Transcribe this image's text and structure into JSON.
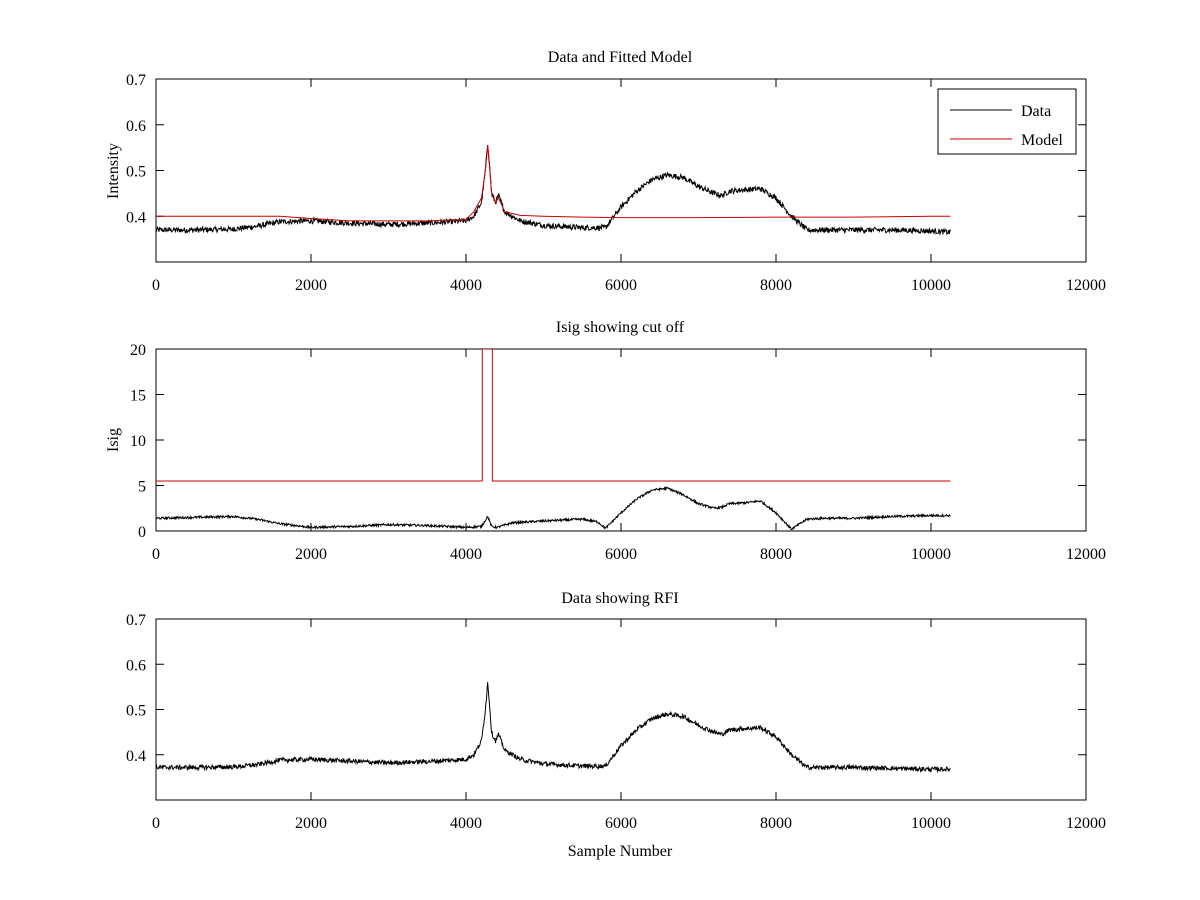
{
  "figure": {
    "background": "#ffffff"
  },
  "chart_data": [
    {
      "type": "line",
      "title": "Data and Fitted Model",
      "xlabel": "",
      "ylabel": "Intensity",
      "xlim": [
        0,
        12000
      ],
      "ylim": [
        0.3,
        0.7
      ],
      "xticks": [
        0,
        2000,
        4000,
        6000,
        8000,
        10000,
        12000
      ],
      "xtick_labels": [
        "0",
        "2000",
        "4000",
        "6000",
        "8000",
        "10000",
        "12000"
      ],
      "yticks": [
        0.4,
        0.5,
        0.6,
        0.7
      ],
      "ytick_labels": [
        "0.4",
        "0.5",
        "0.6",
        "0.7"
      ],
      "legend": {
        "position": "top-right",
        "entries": [
          "Data",
          "Model"
        ]
      },
      "series": [
        {
          "name": "Data",
          "color": "#000000",
          "noise": 0.006,
          "x": [
            0,
            500,
            1000,
            1300,
            1600,
            2000,
            2500,
            3000,
            3500,
            4000,
            4100,
            4200,
            4250,
            4280,
            4300,
            4330,
            4380,
            4420,
            4500,
            4700,
            5000,
            5500,
            5800,
            6000,
            6200,
            6400,
            6600,
            6800,
            7000,
            7200,
            7300,
            7400,
            7600,
            7800,
            8000,
            8200,
            8400,
            8600,
            9000,
            9500,
            10000,
            10250
          ],
          "y": [
            0.37,
            0.37,
            0.372,
            0.378,
            0.388,
            0.39,
            0.385,
            0.382,
            0.385,
            0.39,
            0.4,
            0.43,
            0.5,
            0.56,
            0.52,
            0.45,
            0.43,
            0.445,
            0.41,
            0.39,
            0.38,
            0.375,
            0.375,
            0.42,
            0.455,
            0.48,
            0.49,
            0.485,
            0.465,
            0.45,
            0.445,
            0.455,
            0.458,
            0.46,
            0.44,
            0.4,
            0.37,
            0.37,
            0.37,
            0.37,
            0.368,
            0.365
          ]
        },
        {
          "name": "Model",
          "color": "#cc0000",
          "noise": 0,
          "x": [
            0,
            1000,
            1600,
            2000,
            2500,
            3000,
            3500,
            4000,
            4100,
            4200,
            4250,
            4280,
            4300,
            4330,
            4380,
            4420,
            4500,
            4700,
            5000,
            5500,
            6000,
            7000,
            8000,
            9000,
            10000,
            10250
          ],
          "y": [
            0.4,
            0.4,
            0.4,
            0.395,
            0.39,
            0.39,
            0.39,
            0.393,
            0.41,
            0.44,
            0.5,
            0.555,
            0.52,
            0.45,
            0.43,
            0.44,
            0.41,
            0.402,
            0.4,
            0.398,
            0.397,
            0.397,
            0.398,
            0.398,
            0.4,
            0.4
          ]
        }
      ]
    },
    {
      "type": "line",
      "title": "Isig showing cut off",
      "xlabel": "",
      "ylabel": "Isig",
      "xlim": [
        0,
        12000
      ],
      "ylim": [
        0,
        20
      ],
      "xticks": [
        0,
        2000,
        4000,
        6000,
        8000,
        10000,
        12000
      ],
      "xtick_labels": [
        "0",
        "2000",
        "4000",
        "6000",
        "8000",
        "10000",
        "12000"
      ],
      "yticks": [
        0,
        5,
        10,
        15,
        20
      ],
      "ytick_labels": [
        "0",
        "5",
        "10",
        "15",
        "20"
      ],
      "series": [
        {
          "color": "#000000",
          "noise": 0.12,
          "x": [
            0,
            500,
            1000,
            1300,
            1600,
            2000,
            2500,
            3000,
            3500,
            4000,
            4200,
            4280,
            4330,
            4400,
            4600,
            5000,
            5500,
            5700,
            5800,
            6000,
            6200,
            6400,
            6600,
            6800,
            7000,
            7200,
            7300,
            7400,
            7600,
            7800,
            8000,
            8200,
            8400,
            8600,
            9000,
            9500,
            10000,
            10250
          ],
          "y": [
            1.4,
            1.5,
            1.6,
            1.3,
            0.8,
            0.4,
            0.5,
            0.7,
            0.6,
            0.4,
            0.5,
            1.6,
            0.5,
            0.4,
            0.9,
            1.1,
            1.3,
            1.0,
            0.3,
            2.0,
            3.5,
            4.5,
            4.7,
            4.0,
            3.0,
            2.5,
            2.6,
            3.0,
            3.1,
            3.3,
            2.0,
            0.2,
            1.3,
            1.4,
            1.4,
            1.6,
            1.7,
            1.7
          ]
        },
        {
          "color": "#cc0000",
          "noise": 0,
          "x": [
            0,
            4210,
            4210,
            4340,
            4340,
            10250
          ],
          "y": [
            5.5,
            5.5,
            20,
            20,
            5.5,
            5.5
          ]
        }
      ]
    },
    {
      "type": "line",
      "title": "Data showing RFI",
      "xlabel": "Sample Number",
      "ylabel": "",
      "xlim": [
        0,
        12000
      ],
      "ylim": [
        0.3,
        0.7
      ],
      "xticks": [
        0,
        2000,
        4000,
        6000,
        8000,
        10000,
        12000
      ],
      "xtick_labels": [
        "0",
        "2000",
        "4000",
        "6000",
        "8000",
        "10000",
        "12000"
      ],
      "yticks": [
        0.4,
        0.5,
        0.6,
        0.7
      ],
      "ytick_labels": [
        "0.4",
        "0.5",
        "0.6",
        "0.7"
      ],
      "series": [
        {
          "color": "#000000",
          "noise": 0.005,
          "x": [
            0,
            500,
            1000,
            1300,
            1600,
            2000,
            2500,
            3000,
            3500,
            4000,
            4100,
            4200,
            4250,
            4280,
            4300,
            4330,
            4380,
            4420,
            4500,
            4700,
            5000,
            5500,
            5800,
            6000,
            6200,
            6400,
            6600,
            6800,
            7000,
            7200,
            7300,
            7400,
            7600,
            7800,
            8000,
            8200,
            8400,
            8600,
            9000,
            9500,
            10000,
            10250
          ],
          "y": [
            0.372,
            0.372,
            0.373,
            0.378,
            0.388,
            0.39,
            0.386,
            0.382,
            0.385,
            0.39,
            0.4,
            0.43,
            0.5,
            0.56,
            0.52,
            0.45,
            0.43,
            0.445,
            0.41,
            0.39,
            0.38,
            0.375,
            0.375,
            0.42,
            0.455,
            0.48,
            0.49,
            0.485,
            0.465,
            0.45,
            0.445,
            0.455,
            0.458,
            0.46,
            0.44,
            0.4,
            0.372,
            0.372,
            0.372,
            0.37,
            0.368,
            0.368
          ]
        }
      ]
    }
  ]
}
